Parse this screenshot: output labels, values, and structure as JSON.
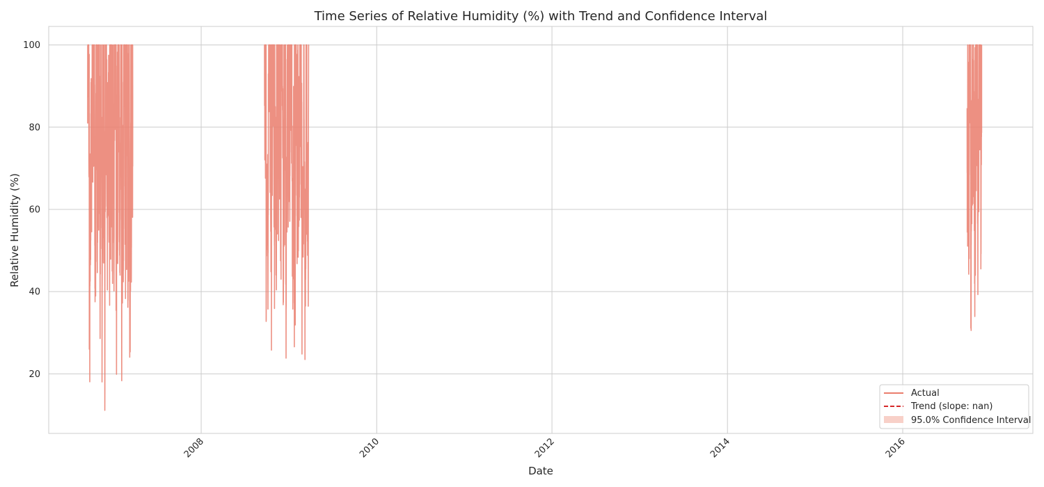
{
  "chart_data": {
    "type": "line",
    "title": "Time Series of Relative Humidity (%) with Trend and Confidence Interval",
    "xlabel": "Date",
    "ylabel": "Relative Humidity (%)",
    "x_axis_type": "date",
    "xlim": [
      "2006-04-06",
      "2017-06-26"
    ],
    "ylim": [
      5.5,
      104.5
    ],
    "x_ticks": [
      "2008",
      "2010",
      "2012",
      "2014",
      "2016"
    ],
    "y_ticks": [
      20,
      40,
      60,
      80,
      100
    ],
    "grid": true,
    "legend_position": "lower-right",
    "series": [
      {
        "name": "Actual",
        "color": "#ea7d6c",
        "segments": [
          {
            "start": "2006-09-15",
            "end": "2007-03-22",
            "min": 10,
            "max": 100
          },
          {
            "start": "2008-09-20",
            "end": "2009-03-25",
            "min": 20,
            "max": 100
          },
          {
            "start": "2016-09-25",
            "end": "2016-11-25",
            "min": 30,
            "max": 100
          }
        ]
      }
    ],
    "legend": [
      {
        "label": "Actual",
        "kind": "solid-line",
        "color": "#ea7d6c"
      },
      {
        "label": "Trend (slope: nan)",
        "kind": "dashed-line",
        "color": "#d62728"
      },
      {
        "label": "95.0% Confidence Interval",
        "kind": "band",
        "color": "#f8d0c8"
      }
    ]
  }
}
